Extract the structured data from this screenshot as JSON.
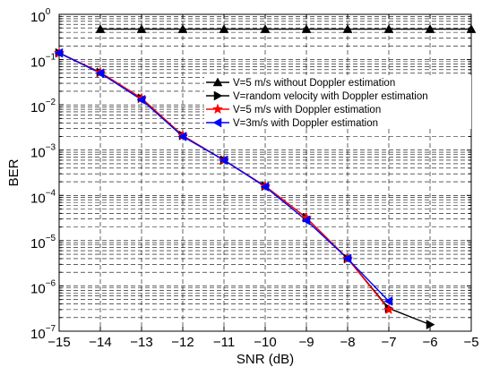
{
  "chart_data": {
    "type": "line",
    "xlabel": "SNR (dB)",
    "ylabel": "BER",
    "xlim": [
      -15,
      -5
    ],
    "ylim": [
      1e-07,
      1
    ],
    "yscale": "log",
    "grid": true,
    "legend_placement": "top-right",
    "x_ticks": [
      "−15",
      "−14",
      "−13",
      "−12",
      "−11",
      "−10",
      "−9",
      "−8",
      "−7",
      "−6",
      "−5"
    ],
    "y_ticks": [
      {
        "base": "10",
        "exp": "0"
      },
      {
        "base": "10",
        "exp": "−1"
      },
      {
        "base": "10",
        "exp": "−2"
      },
      {
        "base": "10",
        "exp": "−3"
      },
      {
        "base": "10",
        "exp": "−4"
      },
      {
        "base": "10",
        "exp": "−5"
      },
      {
        "base": "10",
        "exp": "−6"
      },
      {
        "base": "10",
        "exp": "−7"
      }
    ],
    "series": [
      {
        "name": "V=5 m/s without Doppler estimation",
        "color": "#000000",
        "marker": "triangle-up",
        "x": [
          -14,
          -13,
          -12,
          -11,
          -10,
          -9,
          -8,
          -7,
          -6,
          -5
        ],
        "y": [
          0.47,
          0.47,
          0.47,
          0.47,
          0.47,
          0.47,
          0.47,
          0.47,
          0.47,
          0.47
        ]
      },
      {
        "name": "V=random velocity with Doppler estimation",
        "color": "#000000",
        "marker": "triangle-right",
        "x": [
          -15,
          -14,
          -13,
          -12,
          -11,
          -10,
          -9,
          -8,
          -7,
          -6
        ],
        "y": [
          0.14,
          0.052,
          0.014,
          0.0021,
          0.0006,
          0.00016,
          3.2e-05,
          4e-06,
          3.2e-07,
          1.4e-07
        ]
      },
      {
        "name": "V=5 m/s with Doppler estimation",
        "color": "#ff0000",
        "marker": "star",
        "x": [
          -15,
          -14,
          -13,
          -12,
          -11,
          -10,
          -9,
          -8,
          -7
        ],
        "y": [
          0.14,
          0.052,
          0.014,
          0.0021,
          0.0006,
          0.00016,
          3.2e-05,
          4e-06,
          3e-07
        ]
      },
      {
        "name": "V=3m/s with Doppler estimation",
        "color": "#0000ff",
        "marker": "triangle-left",
        "x": [
          -15,
          -14,
          -13,
          -12,
          -11,
          -10,
          -9,
          -8,
          -7
        ],
        "y": [
          0.14,
          0.05,
          0.013,
          0.002,
          0.0006,
          0.000155,
          2.8e-05,
          4e-06,
          4.6e-07
        ]
      }
    ]
  }
}
